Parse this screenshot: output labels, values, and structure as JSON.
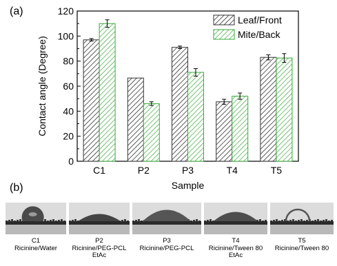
{
  "panel_a_label": "(a)",
  "panel_b_label": "(b)",
  "chart_data": {
    "type": "bar",
    "xlabel": "Sample",
    "ylabel": "Contact angle (Degree)",
    "ylim": [
      0,
      120
    ],
    "yticks": [
      "0",
      "20",
      "40",
      "60",
      "80",
      "100",
      "120"
    ],
    "categories": [
      "C1",
      "P2",
      "P3",
      "T4",
      "T5"
    ],
    "series": [
      {
        "name": "Leaf/Front",
        "values": [
          97,
          66.5,
          91,
          47.5,
          83
        ],
        "errors": [
          1,
          0,
          1,
          2,
          2
        ],
        "color": "#333333",
        "pattern": "hatch-dark"
      },
      {
        "name": "Mite/Back",
        "values": [
          110,
          46,
          71,
          52,
          82.5
        ],
        "errors": [
          3,
          1.5,
          3,
          2.5,
          3.5
        ],
        "color": "#3aa83a",
        "pattern": "hatch-green"
      }
    ],
    "legend": "top-right",
    "grid": false
  },
  "droplets": [
    {
      "name": "C1",
      "lines": [
        "C1",
        "Ricinine/Water"
      ]
    },
    {
      "name": "P2",
      "lines": [
        "P2",
        "Ricinine/PEG-PCL",
        "EtAc"
      ]
    },
    {
      "name": "P3",
      "lines": [
        "P3",
        "Ricinine/PEG-PCL"
      ]
    },
    {
      "name": "T4",
      "lines": [
        "T4",
        "Ricinine/Tween 80",
        "EtAc"
      ]
    },
    {
      "name": "T5",
      "lines": [
        "T5",
        "Ricinine/Tween 80"
      ]
    }
  ]
}
